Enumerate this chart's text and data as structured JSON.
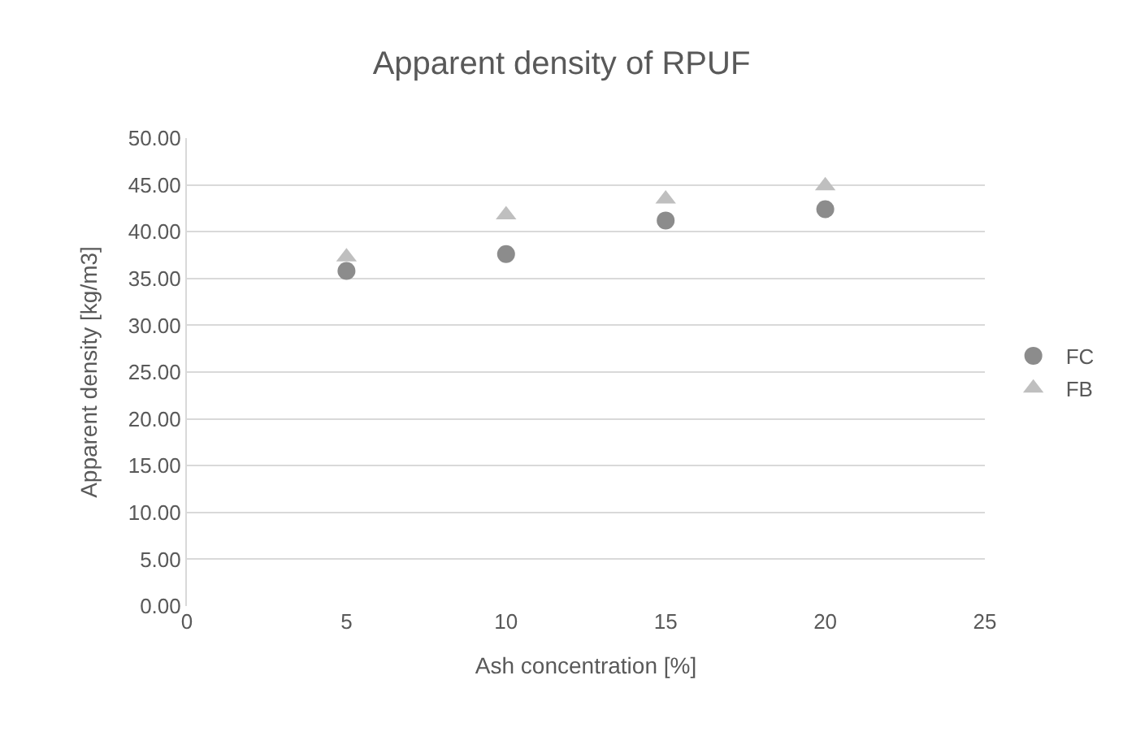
{
  "chart_data": {
    "type": "scatter",
    "title": "Apparent density of RPUF",
    "xlabel": "Ash concentration [%]",
    "ylabel": "Apparent density [kg/m3]",
    "x": [
      5,
      10,
      15,
      20
    ],
    "series": [
      {
        "name": "FC",
        "color": "#8c8c8c",
        "marker": "circle",
        "values": [
          35.8,
          37.6,
          41.2,
          42.4
        ]
      },
      {
        "name": "FB",
        "color": "#bfbfbf",
        "marker": "triangle",
        "values": [
          37.3,
          41.8,
          43.5,
          44.9
        ]
      }
    ],
    "xlim": [
      0,
      25
    ],
    "xticks": [
      0,
      5,
      10,
      15,
      20,
      25
    ],
    "ylim": [
      0,
      50
    ],
    "yticks": [
      {
        "value": 0,
        "label": "0.00"
      },
      {
        "value": 5,
        "label": "5.00"
      },
      {
        "value": 10,
        "label": "10.00"
      },
      {
        "value": 15,
        "label": "15.00"
      },
      {
        "value": 20,
        "label": "20.00"
      },
      {
        "value": 25,
        "label": "25.00"
      },
      {
        "value": 30,
        "label": "30.00"
      },
      {
        "value": 35,
        "label": "35.00"
      },
      {
        "value": 40,
        "label": "40.00"
      },
      {
        "value": 45,
        "label": "45.00"
      },
      {
        "value": 50,
        "label": "50.00"
      }
    ],
    "grid": "y",
    "legend": "right"
  }
}
